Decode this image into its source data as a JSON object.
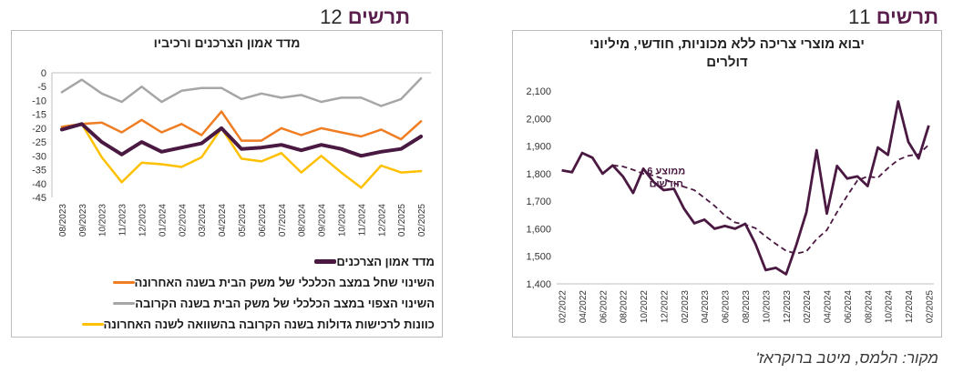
{
  "figures": [
    {
      "word": "תרשים",
      "number": "12"
    },
    {
      "word": "תרשים",
      "number": "11"
    }
  ],
  "source": "מקור: הלמס, מיטב ברוקראז'",
  "chart_data": [
    {
      "type": "line",
      "title": "מדד אמון הצרכנים ורכיביו",
      "xlabel": "",
      "ylabel": "",
      "ylim": [
        -45,
        0
      ],
      "yticks": [
        0,
        -5,
        -10,
        -15,
        -20,
        -25,
        -30,
        -35,
        -40,
        -45
      ],
      "categories": [
        "08/2023",
        "09/2023",
        "10/2023",
        "11/2023",
        "12/2023",
        "01/2024",
        "02/2024",
        "03/2024",
        "04/2024",
        "05/2024",
        "06/2024",
        "07/2024",
        "08/2024",
        "09/2024",
        "10/2024",
        "11/2024",
        "12/2024",
        "01/2025",
        "02/2025"
      ],
      "grid": false,
      "legend_position": "bottom",
      "series": [
        {
          "name": "מדד אמון הצרכנים",
          "color": "#4a1942",
          "width": 4,
          "values": [
            -20.5,
            -18.5,
            -25,
            -29.5,
            -25,
            -28.5,
            -27,
            -25.5,
            -20,
            -27.5,
            -27,
            -26,
            -28,
            -26,
            -27.5,
            -30,
            -28.5,
            -27.5,
            -23
          ]
        },
        {
          "name": "השינוי שחל במצב הכלכלי של משק הבית  בשנה האחרונה",
          "color": "#f07d22",
          "width": 2.5,
          "values": [
            -19.5,
            -18.5,
            -18,
            -21.5,
            -17,
            -21.5,
            -18.5,
            -22.5,
            -14,
            -24.5,
            -24.5,
            -20,
            -22.5,
            -20,
            -21.5,
            -23,
            -20.5,
            -24,
            -17.5
          ]
        },
        {
          "name": "השינוי הצפוי במצב הכלכלי של משק הבית בשנה הקרובה",
          "color": "#a6a6a6",
          "width": 2.5,
          "values": [
            -7,
            -2.5,
            -7.5,
            -10.5,
            -5,
            -10.5,
            -6.5,
            -5.5,
            -5.5,
            -9.5,
            -7.5,
            -9,
            -8,
            -10.5,
            -9,
            -9,
            -12,
            -9.5,
            -2
          ]
        },
        {
          "name": "כוונות לרכישות גדולות בשנה הקרובה בהשוואה לשנה האחרונה",
          "color": "#ffc000",
          "width": 2.5,
          "values": [
            -20,
            -18.5,
            -30.5,
            -39.5,
            -32.5,
            -33,
            -34,
            -30.5,
            -20,
            -31,
            -32,
            -29,
            -36,
            -30,
            -36,
            -41.5,
            -33.5,
            -36,
            -35.5
          ]
        }
      ]
    },
    {
      "type": "line",
      "title": "יבוא מוצרי צריכה ללא מכוניות, חודשי, מיליוני דולרים",
      "xlabel": "",
      "ylabel": "",
      "ylim": [
        1400,
        2100
      ],
      "yticks": [
        "1,400",
        "1,500",
        "1,600",
        "1,700",
        "1,800",
        "1,900",
        "2,000",
        "2,100"
      ],
      "grid": false,
      "x": [
        "02/2022",
        "03/2022",
        "04/2022",
        "05/2022",
        "06/2022",
        "07/2022",
        "08/2022",
        "09/2022",
        "10/2022",
        "11/2022",
        "12/2022",
        "01/2023",
        "02/2023",
        "03/2023",
        "04/2023",
        "05/2023",
        "06/2023",
        "07/2023",
        "08/2023",
        "09/2023",
        "10/2023",
        "11/2023",
        "12/2023",
        "01/2024",
        "02/2024",
        "03/2024",
        "04/2024",
        "05/2024",
        "06/2024",
        "07/2024",
        "08/2024",
        "09/2024",
        "10/2024",
        "11/2024",
        "12/2024",
        "01/2025",
        "02/2025"
      ],
      "tick_labels": [
        "02/2022",
        "04/2022",
        "06/2022",
        "08/2022",
        "10/2022",
        "12/2022",
        "02/2023",
        "04/2023",
        "06/2023",
        "08/2023",
        "10/2023",
        "12/2023",
        "02/2024",
        "04/2024",
        "06/2024",
        "08/2024",
        "10/2024",
        "12/2024",
        "02/2025"
      ],
      "annotation": "ממוצע 6 חודשים",
      "series": [
        {
          "name": "",
          "color": "#4a1942",
          "style": "solid",
          "values": [
            1812,
            1805,
            1875,
            1858,
            1800,
            1830,
            1790,
            1730,
            1818,
            1770,
            1740,
            1745,
            1672,
            1620,
            1633,
            1600,
            1610,
            1600,
            1618,
            1545,
            1450,
            1458,
            1435,
            1540,
            1660,
            1885,
            1655,
            1828,
            1782,
            1790,
            1755,
            1895,
            1868,
            2062,
            1915,
            1855,
            1975
          ]
        },
        {
          "name": "ממוצע 6 חודשים",
          "color": "#4a1942",
          "style": "dashed",
          "values": [
            null,
            null,
            null,
            null,
            null,
            1830,
            1826,
            1814,
            1800,
            1793,
            1780,
            1766,
            1752,
            1740,
            1712,
            1683,
            1648,
            1623,
            1615,
            1602,
            1572,
            1545,
            1520,
            1510,
            1518,
            1562,
            1595,
            1660,
            1720,
            1775,
            1790,
            1785,
            1820,
            1850,
            1865,
            1870,
            1905
          ]
        }
      ]
    }
  ]
}
